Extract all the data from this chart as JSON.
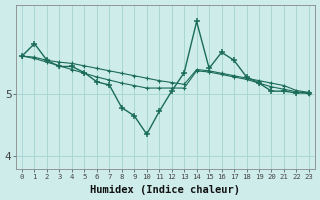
{
  "xlabel": "Humidex (Indice chaleur)",
  "bg_color": "#ceecea",
  "grid_color": "#a8d8d4",
  "line_color": "#1a6b5a",
  "x_values": [
    0,
    1,
    2,
    3,
    4,
    5,
    6,
    7,
    8,
    9,
    10,
    11,
    12,
    13,
    14,
    15,
    16,
    17,
    18,
    19,
    20,
    21,
    22,
    23
  ],
  "y_wavy": [
    5.62,
    5.82,
    5.55,
    5.45,
    5.45,
    5.35,
    5.2,
    5.15,
    4.78,
    4.65,
    4.35,
    4.72,
    5.05,
    5.35,
    6.18,
    5.42,
    5.68,
    5.55,
    5.28,
    5.18,
    5.05,
    5.05,
    5.02,
    5.02
  ],
  "y_line1": [
    5.62,
    5.6,
    5.55,
    5.52,
    5.5,
    5.46,
    5.42,
    5.38,
    5.34,
    5.3,
    5.26,
    5.22,
    5.19,
    5.16,
    5.4,
    5.38,
    5.34,
    5.3,
    5.26,
    5.22,
    5.18,
    5.14,
    5.06,
    5.03
  ],
  "y_line2": [
    5.62,
    5.58,
    5.52,
    5.46,
    5.4,
    5.34,
    5.28,
    5.23,
    5.18,
    5.14,
    5.1,
    5.1,
    5.1,
    5.1,
    5.38,
    5.36,
    5.32,
    5.28,
    5.24,
    5.18,
    5.12,
    5.08,
    5.04,
    5.01
  ],
  "yticks": [
    4,
    5
  ],
  "ylim": [
    3.78,
    6.45
  ],
  "xlim": [
    -0.5,
    23.5
  ]
}
